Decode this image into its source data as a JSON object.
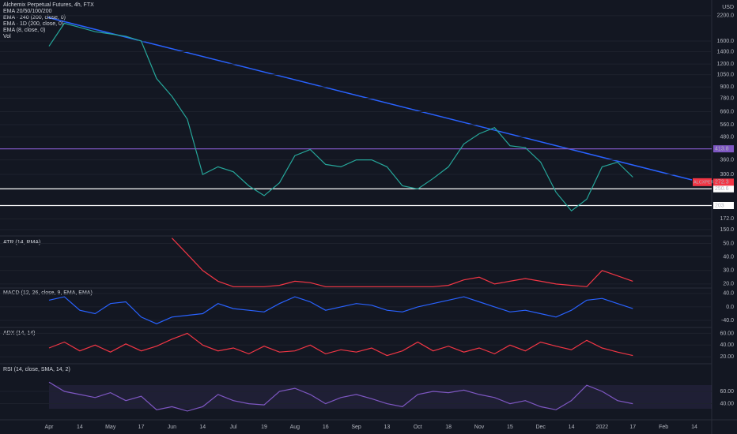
{
  "chart_data": [
    {
      "type": "line",
      "title": "Alchemix Perpetual Futures, 4h, FTX",
      "indicators": [
        "EMA 20/50/100/200",
        "EMA · 240 (200, close, 0)",
        "EMA · 1D (200, close, 0)",
        "EMA (8, close, 0)",
        "Vol"
      ],
      "currency": "USD",
      "symbol": "ALCXPERP",
      "last_price": 272.3,
      "log": true,
      "color": "#26a69a",
      "categories": [
        "Apr",
        null,
        "14",
        null,
        "May",
        null,
        "17",
        null,
        "Jun",
        null,
        "14",
        null,
        "Jul",
        null,
        "19",
        null,
        "Aug",
        null,
        "16",
        null,
        "Sep",
        null,
        "13",
        null,
        "Oct",
        null,
        "18",
        null,
        "Nov",
        null,
        "15",
        null,
        "Dec",
        null,
        "14",
        null,
        "2022",
        null,
        "17",
        null,
        "Feb",
        null,
        "14",
        null
      ],
      "values": [
        1500,
        2000,
        1900,
        1800,
        1750,
        1700,
        1600,
        1000,
        800,
        600,
        300,
        330,
        310,
        260,
        230,
        270,
        380,
        410,
        340,
        330,
        360,
        360,
        330,
        260,
        250,
        285,
        330,
        440,
        500,
        540,
        430,
        420,
        350,
        240,
        190,
        220,
        330,
        350,
        290,
        null,
        null,
        null,
        null,
        null
      ],
      "ylim": [
        140,
        2550
      ],
      "yticks": [
        {
          "value": 2200,
          "label": "2200.0"
        },
        {
          "value": 1600,
          "label": "1600.0"
        },
        {
          "value": 1400,
          "label": "1400.0"
        },
        {
          "value": 1200,
          "label": "1200.0"
        },
        {
          "value": 1050,
          "label": "1050.0"
        },
        {
          "value": 900,
          "label": "900.0"
        },
        {
          "value": 780,
          "label": "780.0"
        },
        {
          "value": 660,
          "label": "660.0"
        },
        {
          "value": 560,
          "label": "560.0"
        },
        {
          "value": 480,
          "label": "480.0"
        },
        {
          "value": 360,
          "label": "360.0"
        },
        {
          "value": 300,
          "label": "300.0"
        },
        {
          "value": 172,
          "label": "172.0"
        },
        {
          "value": 150,
          "label": "150.0"
        }
      ],
      "hlines": [
        413.8,
        250.6,
        203.0
      ],
      "hline_colors": [
        "#7e57c2",
        "#ffffff",
        "#ffffff"
      ]
    },
    {
      "type": "line",
      "title": "ATR (14, RMA)",
      "color": "#f23645",
      "values": [
        null,
        null,
        null,
        null,
        null,
        null,
        null,
        null,
        54,
        42,
        30,
        22,
        18,
        18,
        18,
        19,
        22,
        21,
        18,
        18,
        18,
        18,
        18,
        18,
        18,
        18,
        19,
        23,
        25,
        20,
        22,
        24,
        22,
        20,
        19,
        18,
        30,
        26,
        22,
        null,
        null,
        null,
        null,
        null
      ],
      "ylim": [
        17,
        55
      ],
      "yticks": [
        {
          "value": 50,
          "label": "50.0"
        },
        {
          "value": 40,
          "label": "40.0"
        },
        {
          "value": 30,
          "label": "30.0"
        },
        {
          "value": 20,
          "label": "20.0"
        }
      ]
    },
    {
      "type": "line",
      "title": "MACD (12, 26, close, 9, EMA, EMA)",
      "color": "#2962ff",
      "values": [
        20,
        30,
        -10,
        -20,
        10,
        15,
        -30,
        -50,
        -30,
        -25,
        -20,
        10,
        -5,
        -10,
        -15,
        10,
        30,
        15,
        -10,
        0,
        10,
        5,
        -10,
        -15,
        0,
        10,
        20,
        30,
        15,
        0,
        -15,
        -10,
        -20,
        -30,
        -10,
        20,
        25,
        10,
        -5,
        null,
        null,
        null,
        null,
        null
      ],
      "ylim": [
        -61,
        56
      ],
      "yticks": [
        {
          "value": 40,
          "label": "40.0"
        },
        {
          "value": 0,
          "label": "0.0"
        },
        {
          "value": -40,
          "label": "-40.0"
        }
      ]
    },
    {
      "type": "line",
      "title": "ADX (14, 14)",
      "color": "#f23645",
      "values": [
        35,
        45,
        30,
        40,
        28,
        42,
        30,
        38,
        50,
        60,
        40,
        30,
        35,
        25,
        38,
        28,
        30,
        40,
        25,
        32,
        28,
        35,
        22,
        30,
        45,
        30,
        38,
        28,
        35,
        25,
        40,
        30,
        45,
        38,
        32,
        48,
        35,
        28,
        22,
        null,
        null,
        null,
        null,
        null
      ],
      "ylim": [
        8,
        70
      ],
      "yticks": [
        {
          "value": 60,
          "label": "60.00"
        },
        {
          "value": 40,
          "label": "40.00"
        },
        {
          "value": 20,
          "label": "20.00"
        }
      ]
    },
    {
      "type": "line",
      "title": "RSI (14, close, SMA, 14, 2)",
      "color": "#7e57c2",
      "values": [
        75,
        60,
        55,
        50,
        58,
        45,
        52,
        30,
        35,
        28,
        35,
        55,
        45,
        40,
        38,
        60,
        65,
        55,
        40,
        50,
        55,
        48,
        40,
        35,
        55,
        60,
        58,
        62,
        55,
        50,
        40,
        45,
        35,
        30,
        45,
        70,
        60,
        45,
        40,
        null,
        null,
        null,
        null,
        null
      ],
      "ylim": [
        15,
        105
      ],
      "yticks": [
        {
          "value": 60,
          "label": "60.00"
        },
        {
          "value": 40,
          "label": "40.00"
        }
      ]
    }
  ]
}
